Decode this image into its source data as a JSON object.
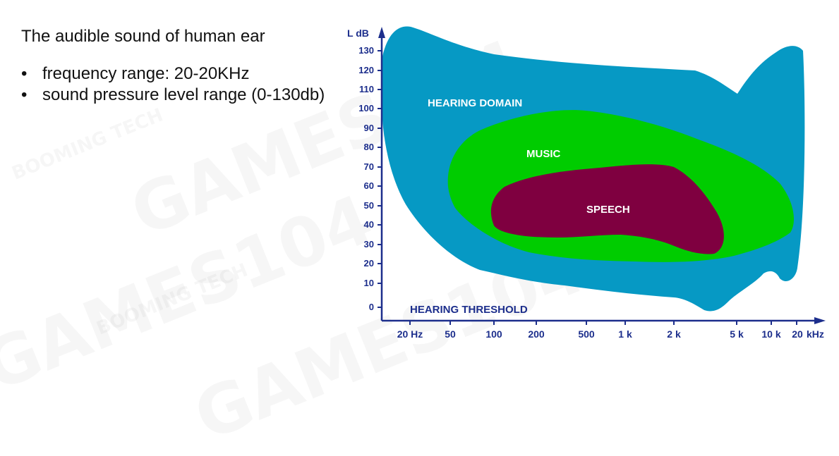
{
  "slide": {
    "title": "The audible sound of human ear",
    "bullets": [
      "frequency range:  20-20KHz",
      "sound pressure level range (0-130db)"
    ]
  },
  "watermark": {
    "text": "GAMES104",
    "subtext": "BOOMING TECH"
  },
  "diagram": {
    "y_axis_label": "L dB",
    "x_axis_unit": "kHz",
    "y_ticks": [
      "130",
      "120",
      "110",
      "100",
      "90",
      "80",
      "70",
      "60",
      "50",
      "40",
      "30",
      "20",
      "10",
      "0"
    ],
    "x_ticks": [
      "20 Hz",
      "50",
      "100",
      "200",
      "500",
      "1 k",
      "2 k",
      "5 k",
      "10 k",
      "20"
    ],
    "regions": {
      "hearing_domain": "HEARING DOMAIN",
      "music": "MUSIC",
      "speech": "SPEECH",
      "hearing_threshold": "HEARING THRESHOLD"
    },
    "colors": {
      "hearing_domain": "#0699c4",
      "music": "#00cc00",
      "speech": "#7f0040",
      "axis": "#1c2e8c"
    }
  }
}
